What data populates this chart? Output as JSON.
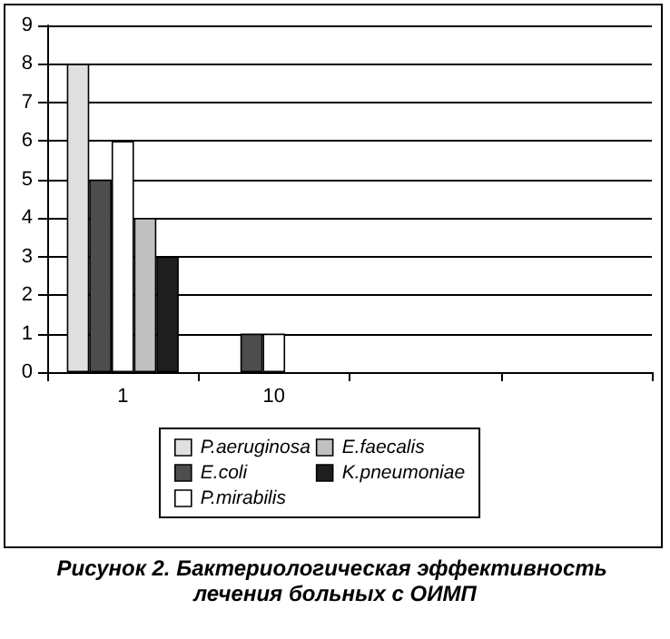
{
  "chart_data": {
    "type": "bar",
    "title": "Рисунок 2. Бактериологическая эффективность лечения больных с ОИМП",
    "categories": [
      "1",
      "10",
      null,
      null
    ],
    "series": [
      {
        "name": "P.aeruginosa",
        "color": "#e0e0e0",
        "values": [
          8,
          null,
          null,
          null
        ]
      },
      {
        "name": "E.coli",
        "color": "#4d4d4d",
        "values": [
          5,
          1,
          null,
          null
        ]
      },
      {
        "name": "P.mirabilis",
        "color": "#ffffff",
        "values": [
          6,
          1,
          null,
          null
        ]
      },
      {
        "name": "E.faecalis",
        "color": "#c0c0c0",
        "values": [
          4,
          null,
          null,
          null
        ]
      },
      {
        "name": "K.pneumoniae",
        "color": "#1e1e1e",
        "values": [
          3,
          null,
          null,
          null
        ]
      }
    ],
    "ylim": [
      0,
      9
    ],
    "yticks": [
      0,
      1,
      2,
      3,
      4,
      5,
      6,
      7,
      8,
      9
    ],
    "grid": "y",
    "legend": "bottom"
  }
}
